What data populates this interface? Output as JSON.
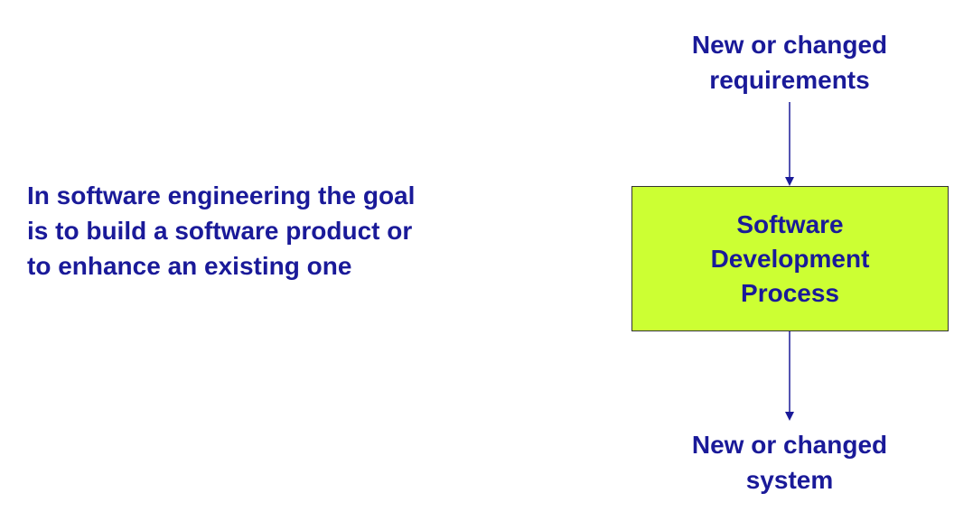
{
  "colors": {
    "text": "#1a1a99",
    "process_fill": "#ccff33",
    "process_border": "#333333",
    "arrow": "#1a1a99",
    "background": "#ffffff"
  },
  "statement": {
    "lines": [
      "In software engineering the goal",
      "is to build a software product or",
      "to enhance an existing one"
    ]
  },
  "diagram": {
    "input": {
      "lines": [
        "New or changed",
        "requirements"
      ]
    },
    "process": {
      "lines": [
        "Software",
        "Development",
        "Process"
      ]
    },
    "output": {
      "lines": [
        "New or changed",
        "system"
      ]
    }
  }
}
